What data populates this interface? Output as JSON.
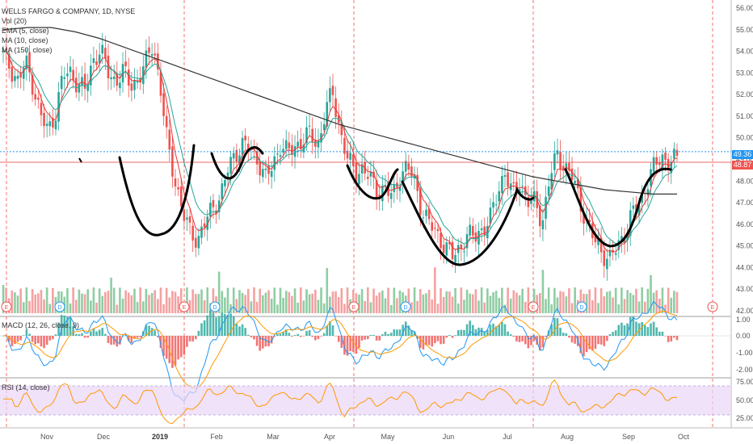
{
  "header": {
    "title": "WELLS FARGO & COMPANY, 1D, NYSE"
  },
  "legend": {
    "vol": "Vol (20)",
    "ema": "EMA (5, close)",
    "ma10": "MA (10, close)",
    "ma150": "MA (150, close)"
  },
  "macd": {
    "label": "MACD (12, 26, close, 9)",
    "ticks": [
      "1.00",
      "0.00",
      "-1.00",
      "-2.00"
    ]
  },
  "rsi": {
    "label": "RSI (14, close)",
    "ticks": [
      "75.00",
      "50.00",
      "25.00"
    ]
  },
  "price_badges": {
    "current": "49.36",
    "second": "48.87"
  },
  "x_axis": {
    "months": [
      "Nov",
      "Dec",
      "2019",
      "Feb",
      "Mar",
      "Apr",
      "May",
      "Jun",
      "Jul",
      "Aug",
      "Sep",
      "Oct"
    ]
  },
  "colors": {
    "up": "#26a69a",
    "down": "#ef5350",
    "up_vol": "#8fcda3",
    "down_vol": "#f4a1a1",
    "ema": "#e53935",
    "ma10": "#26a69a",
    "ma150": "#333333",
    "macd_line": "#2196f3",
    "signal_line": "#ff9800",
    "rsi_line": "#ff9800",
    "rsi_band": "#e9d6f7",
    "current_price": "#2196f3"
  },
  "events": {
    "earnings": "E",
    "dividend": "D"
  },
  "chart_data": {
    "type": "candlestick",
    "title": "WELLS FARGO & COMPANY, 1D, NYSE",
    "ylim": [
      42,
      56
    ],
    "y_ticks": [
      42,
      43,
      44,
      45,
      46,
      47,
      48,
      49,
      50,
      51,
      52,
      53,
      54,
      55,
      56
    ],
    "x_months": [
      "Nov",
      "Dec",
      "2019",
      "Feb",
      "Mar",
      "Apr",
      "May",
      "Jun",
      "Jul",
      "Aug",
      "Sep",
      "Oct"
    ],
    "close_trend": [
      53.8,
      53.2,
      52.6,
      53.5,
      52.4,
      51.0,
      50.3,
      51.2,
      52.9,
      53.0,
      52.5,
      52.2,
      53.6,
      54.1,
      53.0,
      52.6,
      53.1,
      52.4,
      52.7,
      53.4,
      54.4,
      52.3,
      49.5,
      48.0,
      46.5,
      45.6,
      45.3,
      46.1,
      46.8,
      47.3,
      48.5,
      49.3,
      49.7,
      49.5,
      49.0,
      48.1,
      48.7,
      49.7,
      49.3,
      49.6,
      49.9,
      50.2,
      49.6,
      51.2,
      52.1,
      50.3,
      49.0,
      48.4,
      48.6,
      48.1,
      47.5,
      47.7,
      47.2,
      48.3,
      48.7,
      47.9,
      46.6,
      46.0,
      45.5,
      45.0,
      44.5,
      44.9,
      45.5,
      45.4,
      45.8,
      46.2,
      47.4,
      48.5,
      47.3,
      48.0,
      47.1,
      47.0,
      46.1,
      48.2,
      49.2,
      48.7,
      48.2,
      47.0,
      46.1,
      45.2,
      44.7,
      44.4,
      44.9,
      45.6,
      46.5,
      46.9,
      48.0,
      48.7,
      49.1,
      48.9,
      49.0
    ],
    "ma150": [
      55.0,
      55.1,
      55.1,
      54.9,
      54.6,
      54.2,
      53.8,
      53.4,
      53.0,
      52.6,
      52.2,
      51.8,
      51.4,
      51.0,
      50.6,
      50.3,
      50.0,
      49.7,
      49.4,
      49.1,
      48.8,
      48.5,
      48.2,
      48.0,
      47.8,
      47.6,
      47.5,
      47.4,
      47.4
    ],
    "annotations": [
      "cup-and-handle curve 1",
      "cup-and-handle curve 2",
      "cup-and-handle curve 3",
      "cup-and-handle curve 4"
    ]
  }
}
